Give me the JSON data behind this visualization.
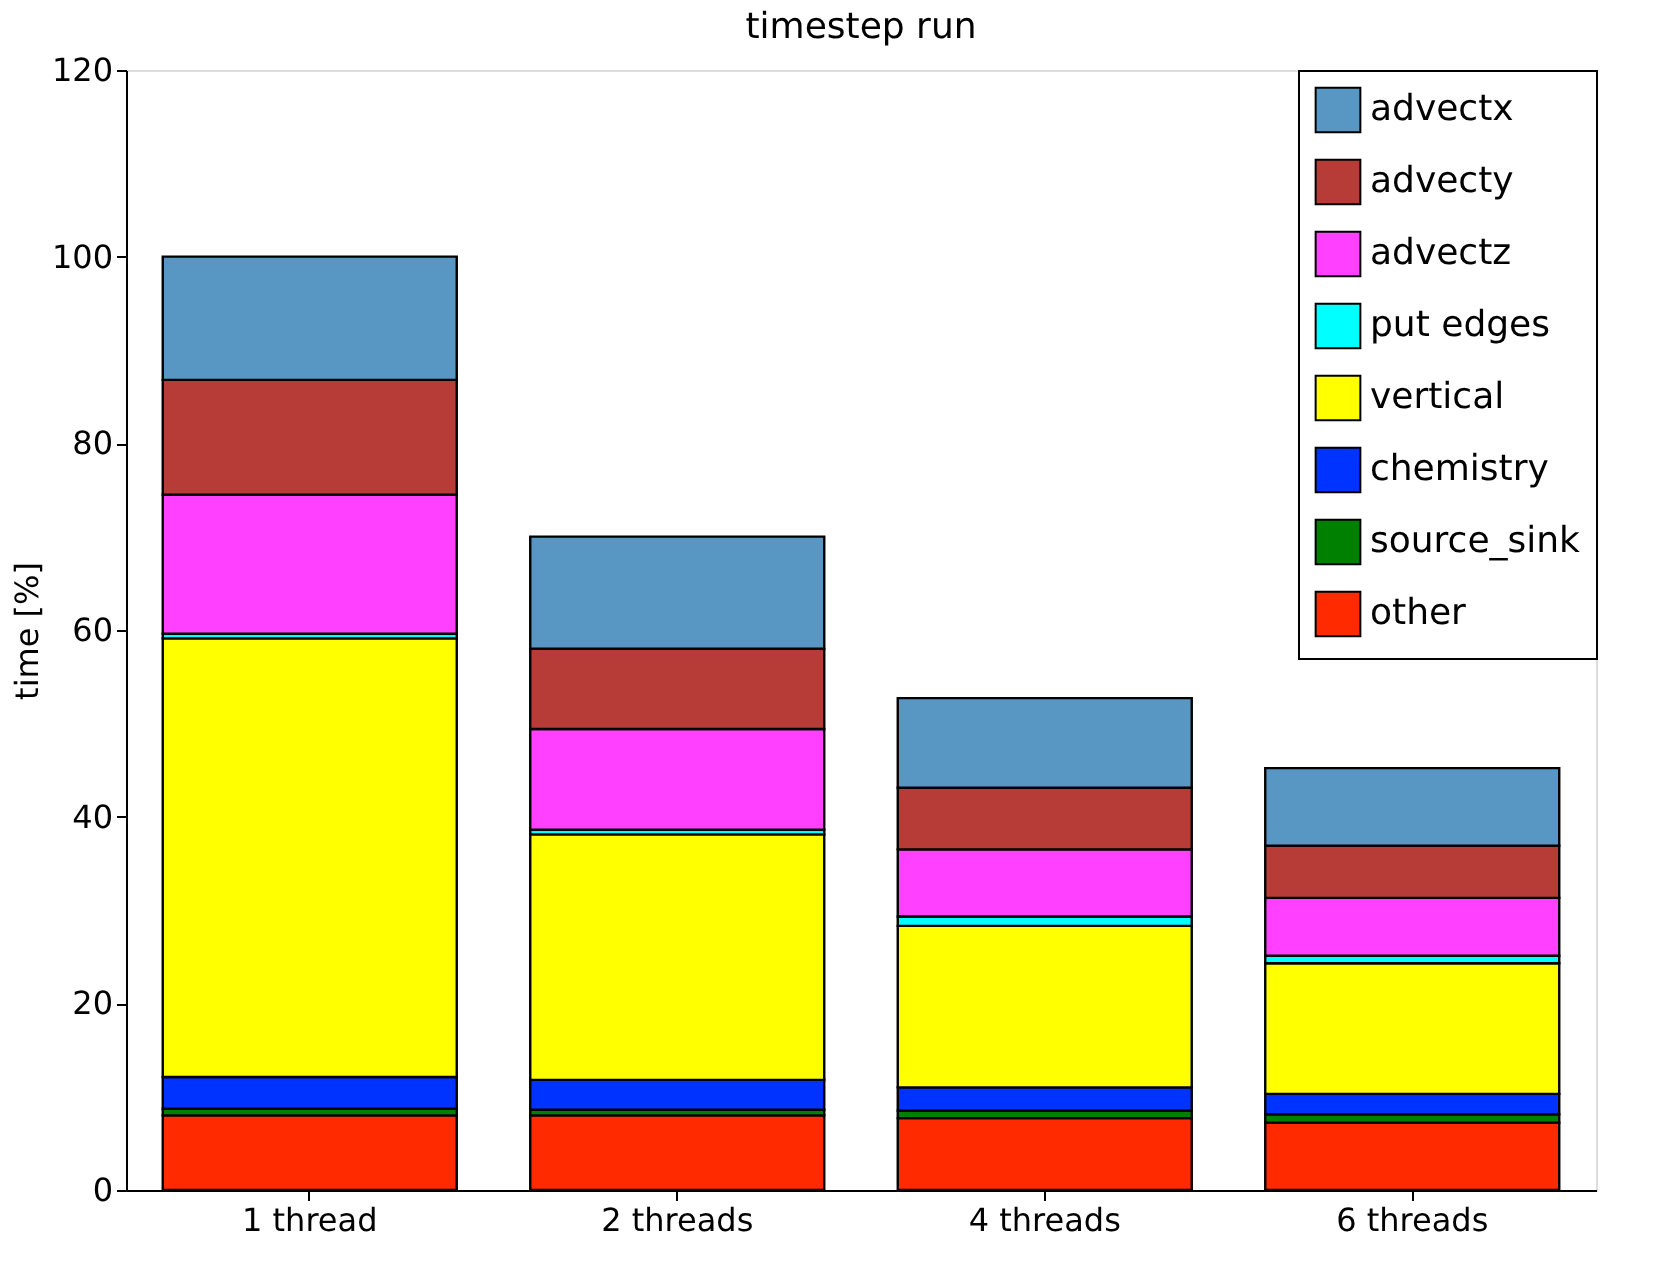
{
  "chart_data": {
    "type": "bar",
    "title": "timestep run",
    "ylabel": "time [%]",
    "categories": [
      "1 thread",
      "2 threads",
      "4 threads",
      "6 threads"
    ],
    "stacked": true,
    "ylim": [
      0,
      120
    ],
    "yticks": [
      0,
      20,
      40,
      60,
      80,
      100,
      120
    ],
    "grid": false,
    "legend": "top right",
    "series": [
      {
        "name": "other",
        "color": "#ff2a00",
        "values": [
          8.0,
          8.0,
          7.7,
          7.2
        ]
      },
      {
        "name": "source_sink",
        "color": "#008000",
        "values": [
          0.7,
          0.6,
          0.8,
          0.9
        ]
      },
      {
        "name": "chemistry",
        "color": "#0033ff",
        "values": [
          3.4,
          3.2,
          2.5,
          2.2
        ]
      },
      {
        "name": "vertical",
        "color": "#ffff00",
        "values": [
          47.0,
          26.3,
          17.3,
          14.0
        ]
      },
      {
        "name": "put edges",
        "color": "#00ffff",
        "values": [
          0.5,
          0.5,
          1.0,
          0.8
        ]
      },
      {
        "name": "advectz",
        "color": "#ff40ff",
        "values": [
          14.9,
          10.8,
          7.2,
          6.2
        ]
      },
      {
        "name": "advecty",
        "color": "#b73c37",
        "values": [
          12.3,
          8.6,
          6.6,
          5.6
        ]
      },
      {
        "name": "advectx",
        "color": "#5896c4",
        "values": [
          13.2,
          12.0,
          9.6,
          8.3
        ]
      }
    ]
  }
}
